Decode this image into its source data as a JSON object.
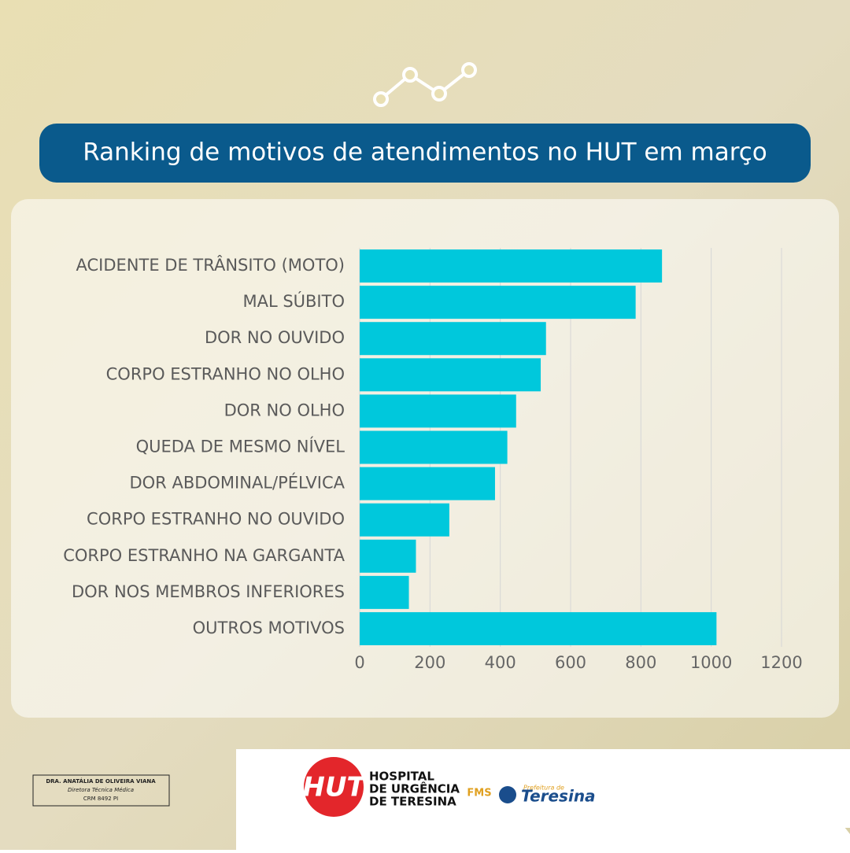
{
  "chart_data": {
    "type": "bar",
    "orientation": "horizontal",
    "title": "Ranking de motivos de atendimentos no HUT em março",
    "categories": [
      "ACIDENTE DE TRÂNSITO (MOTO)",
      "MAL SÚBITO",
      "DOR NO OUVIDO",
      "CORPO ESTRANHO NO OLHO",
      "DOR NO OLHO",
      "QUEDA DE MESMO NÍVEL",
      "DOR ABDOMINAL/PÉLVICA",
      "CORPO ESTRANHO NO OUVIDO",
      "CORPO ESTRANHO NA GARGANTA",
      "DOR NOS MEMBROS INFERIORES",
      "OUTROS MOTIVOS"
    ],
    "values": [
      860,
      785,
      530,
      515,
      445,
      420,
      385,
      255,
      160,
      140,
      1015
    ],
    "color": "#00c8dc",
    "xlim": [
      0,
      1200
    ],
    "xticks": [
      0,
      200,
      400,
      600,
      800,
      1000,
      1200
    ],
    "grid": true
  },
  "signature": {
    "name": "DRA. ANATÁLIA DE OLIVEIRA VIANA",
    "role": "Diretora Técnica Médica",
    "crm": "CRM 8492 PI"
  },
  "footer": {
    "logo": "HUT",
    "hospital": [
      "HOSPITAL",
      "DE URGÊNCIA",
      "DE TERESINA"
    ],
    "fms": "FMS",
    "prefeitura": "Prefeitura de",
    "city": "Teresina"
  }
}
